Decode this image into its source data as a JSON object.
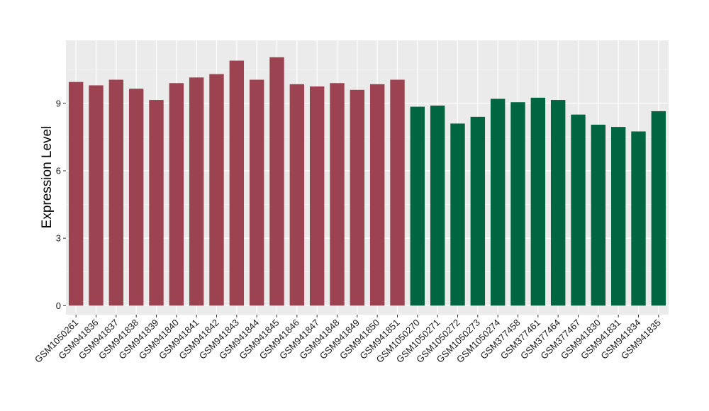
{
  "chart_data": {
    "type": "bar",
    "title": "",
    "xlabel": "",
    "ylabel": "Expression Level",
    "ylim": [
      -0.4,
      11.8
    ],
    "yticks": [
      0,
      3,
      6,
      9
    ],
    "grid": true,
    "legend": "none",
    "categories": [
      "GSM1050261",
      "GSM941836",
      "GSM941837",
      "GSM941838",
      "GSM941839",
      "GSM941840",
      "GSM941841",
      "GSM941842",
      "GSM941843",
      "GSM941844",
      "GSM941845",
      "GSM941846",
      "GSM941847",
      "GSM941848",
      "GSM941849",
      "GSM941850",
      "GSM941851",
      "GSM1050270",
      "GSM1050271",
      "GSM1050272",
      "GSM1050273",
      "GSM1050274",
      "GSM377458",
      "GSM377461",
      "GSM377464",
      "GSM377467",
      "GSM941830",
      "GSM941831",
      "GSM941834",
      "GSM941835"
    ],
    "values": [
      9.95,
      9.8,
      10.05,
      9.65,
      9.15,
      9.9,
      10.15,
      10.3,
      10.9,
      10.05,
      11.05,
      9.85,
      9.75,
      9.9,
      9.6,
      9.85,
      10.05,
      8.85,
      8.9,
      8.1,
      8.4,
      9.2,
      9.05,
      9.25,
      9.15,
      8.5,
      8.05,
      7.95,
      7.75,
      8.65
    ],
    "groups": [
      {
        "count": 17,
        "color": "#9b4350"
      },
      {
        "count": 13,
        "color": "#006641"
      }
    ]
  }
}
